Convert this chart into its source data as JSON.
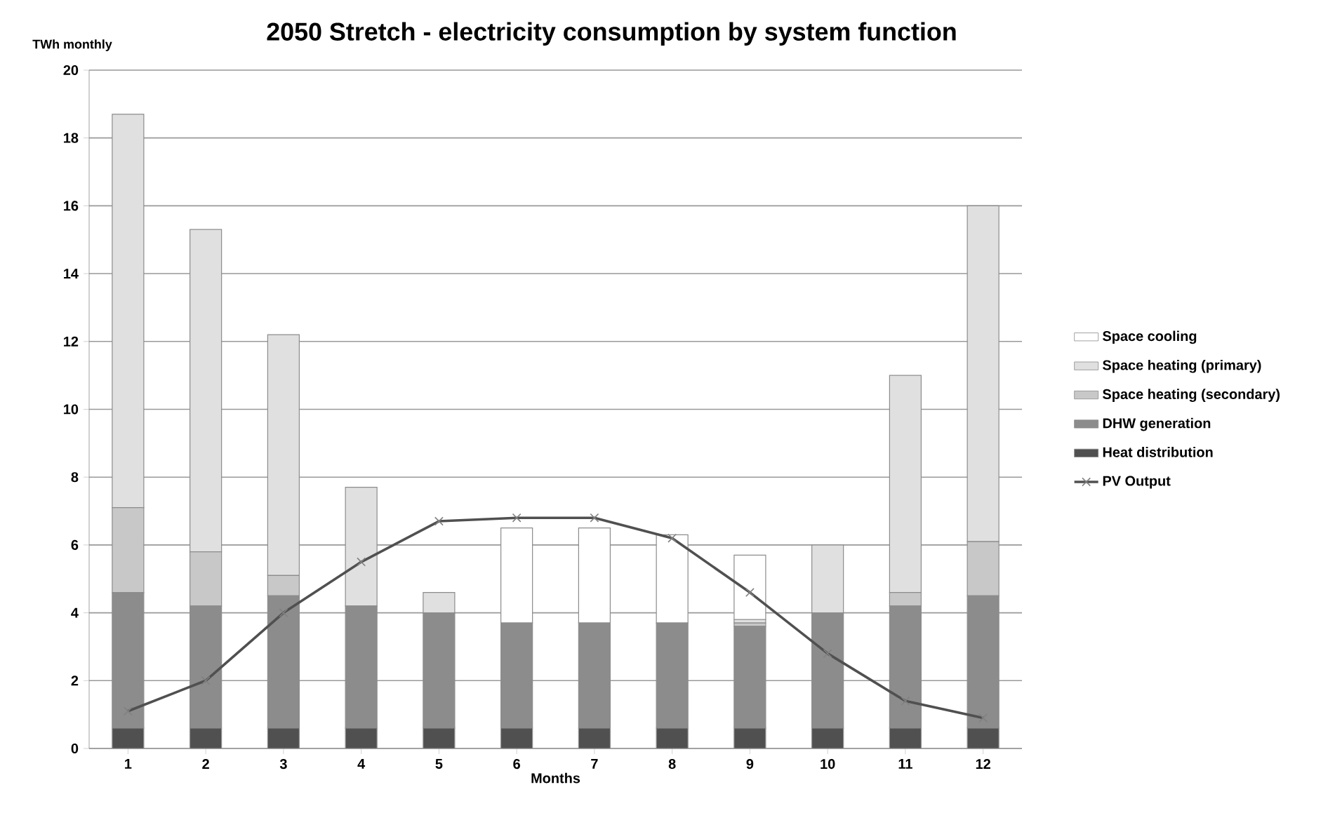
{
  "chart_data": {
    "type": "bar",
    "title": "2050 Stretch - electricity consumption by system function",
    "xlabel": "Months",
    "ylabel": "TWh monthly",
    "categories": [
      "1",
      "2",
      "3",
      "4",
      "5",
      "6",
      "7",
      "8",
      "9",
      "10",
      "11",
      "12"
    ],
    "stacked": true,
    "grid": "y",
    "legend": "right",
    "ylim": [
      0,
      20
    ],
    "yticks": [
      0,
      2,
      4,
      6,
      8,
      10,
      12,
      14,
      16,
      18,
      20
    ],
    "series": [
      {
        "name": "Heat distribution",
        "color": "#505050",
        "values": [
          0.6,
          0.6,
          0.6,
          0.6,
          0.6,
          0.6,
          0.6,
          0.6,
          0.6,
          0.6,
          0.6,
          0.6
        ]
      },
      {
        "name": "DHW generation",
        "color": "#8c8c8c",
        "values": [
          4.0,
          3.6,
          3.9,
          3.6,
          3.4,
          3.1,
          3.1,
          3.1,
          3.0,
          3.4,
          3.6,
          3.9
        ]
      },
      {
        "name": "Space heating (secondary)",
        "color": "#c8c8c8",
        "values": [
          2.5,
          1.6,
          0.6,
          0,
          0,
          0,
          0,
          0,
          0.1,
          0,
          0.4,
          1.6
        ]
      },
      {
        "name": "Space heating (primary)",
        "color": "#e0e0e0",
        "values": [
          11.6,
          9.5,
          7.1,
          3.5,
          0.6,
          0,
          0,
          0,
          0.1,
          2.0,
          6.4,
          9.9
        ]
      },
      {
        "name": "Space cooling",
        "color": "#ffffff",
        "values": [
          0,
          0,
          0,
          0,
          0,
          2.8,
          2.8,
          2.6,
          1.9,
          0,
          0,
          0
        ]
      },
      {
        "name": "PV Output",
        "type": "line",
        "color": "#505050",
        "marker": "cross",
        "values": [
          1.1,
          2.0,
          4.0,
          5.5,
          6.7,
          6.8,
          6.8,
          6.2,
          4.6,
          2.8,
          1.4,
          0.9
        ]
      }
    ]
  }
}
